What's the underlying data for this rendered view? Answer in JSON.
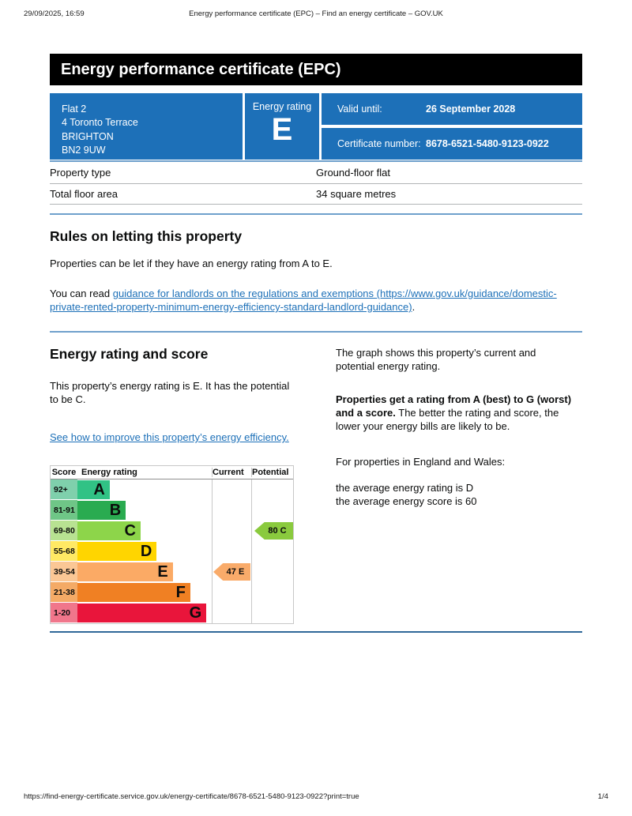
{
  "print_header": {
    "datetime": "29/09/2025, 16:59",
    "title": "Energy performance certificate (EPC) – Find an energy certificate – GOV.UK"
  },
  "banner": {
    "title": "Energy performance certificate (EPC)"
  },
  "summary": {
    "address": {
      "lines": [
        "Flat 2",
        "4 Toronto Terrace",
        "BRIGHTON",
        "BN2 9UW"
      ]
    },
    "rating_panel": {
      "label": "Energy rating",
      "value": "E"
    },
    "validity": {
      "label": "Valid until:",
      "value": "26 September 2028"
    },
    "certificate": {
      "label": "Certificate number:",
      "value": "8678-6521-5480-9123-0922"
    },
    "details": [
      {
        "label": "Property type",
        "value": "Ground-floor flat"
      },
      {
        "label": "Total floor area",
        "value": "34 square metres"
      }
    ]
  },
  "rules": {
    "heading": "Rules on letting this property",
    "p1": "Properties can be let if they have an energy rating from A to E.",
    "p2_prefix": "You can read ",
    "p2_link": "guidance for landlords on the regulations and exemptions (https://www.gov.uk/guidance/domestic-private-rented-property-minimum-energy-efficiency-standard-landlord-guidance)",
    "p2_suffix": "."
  },
  "rating": {
    "heading": "Energy rating and score",
    "p1": "This property’s energy rating is E. It has the potential to be C.",
    "improve_link": "See how to improve this property’s energy efficiency.",
    "right": {
      "p1": "The graph shows this property’s current and potential energy rating.",
      "p2_bold": "Properties get a rating from A (best) to G (worst) and a score.",
      "p2_rest": " The better the rating and score, the lower your energy bills are likely to be.",
      "p3": "For properties in England and Wales:",
      "p4_line1": "the average energy rating is D",
      "p4_line2": "the average energy score is 60"
    }
  },
  "chart_data": {
    "type": "bar",
    "title": "Energy efficiency rating chart",
    "columns": [
      "Score",
      "Energy rating",
      "Current",
      "Potential"
    ],
    "bands": [
      {
        "score": "92+",
        "letter": "A",
        "bar_color": "#31c285",
        "score_bg": "#7fd0ac",
        "bar_width_pct": 24
      },
      {
        "score": "81-91",
        "letter": "B",
        "bar_color": "#2aab50",
        "score_bg": "#6fc687",
        "bar_width_pct": 36
      },
      {
        "score": "69-80",
        "letter": "C",
        "bar_color": "#8dd54a",
        "score_bg": "#b8e292",
        "bar_width_pct": 47
      },
      {
        "score": "55-68",
        "letter": "D",
        "bar_color": "#ffd500",
        "score_bg": "#ffe964",
        "bar_width_pct": 59
      },
      {
        "score": "39-54",
        "letter": "E",
        "bar_color": "#fbaa65",
        "score_bg": "#fbc795",
        "bar_width_pct": 71
      },
      {
        "score": "21-38",
        "letter": "F",
        "bar_color": "#f08023",
        "score_bg": "#f4aa66",
        "bar_width_pct": 84
      },
      {
        "score": "1-20",
        "letter": "G",
        "bar_color": "#e9153b",
        "score_bg": "#f0768b",
        "bar_width_pct": 96
      }
    ],
    "current": {
      "label": "47 E",
      "score": 47,
      "band": "E",
      "color": "#f9ab6a"
    },
    "potential": {
      "label": "80 C",
      "score": 80,
      "band": "C",
      "color": "#8aca3e"
    },
    "accent_blue": "#1d70b8"
  },
  "footer": {
    "url": "https://find-energy-certificate.service.gov.uk/energy-certificate/8678-6521-5480-9123-0922?print=true",
    "page": "1/4"
  }
}
